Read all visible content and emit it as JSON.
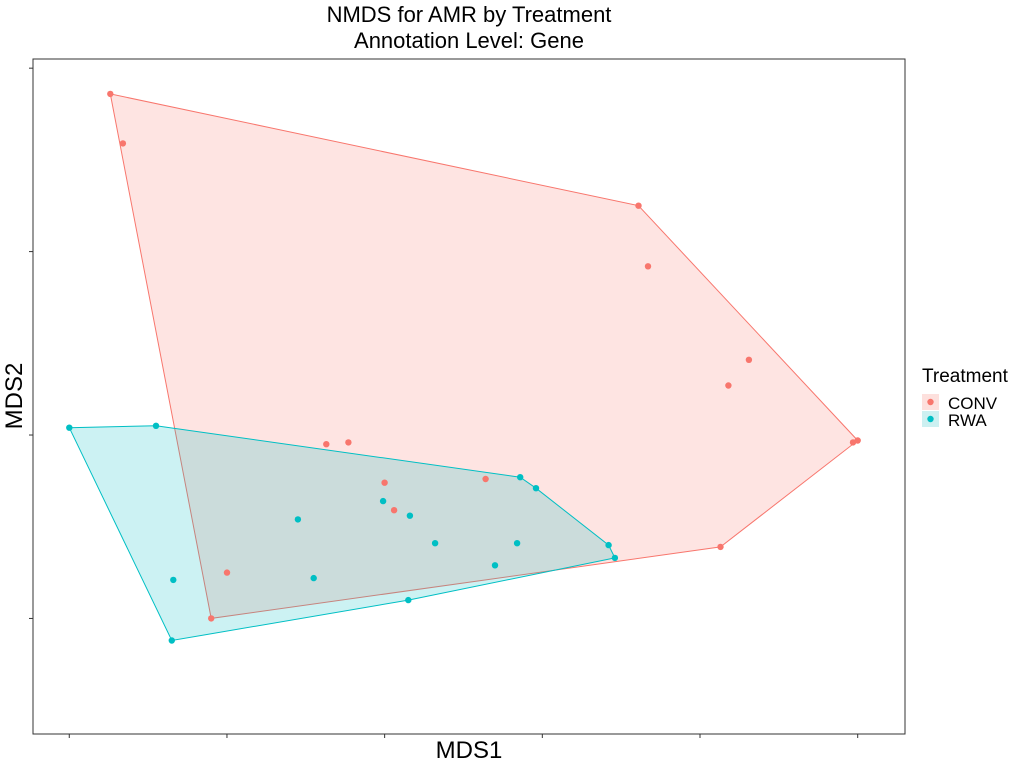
{
  "chart_data": {
    "type": "scatter",
    "title": "NMDS for AMR by Treatment",
    "subtitle": "Annotation Level: Gene",
    "xlabel": "MDS1",
    "ylabel": "MDS2",
    "xlim": [
      -2.23,
      3.3
    ],
    "ylim": [
      -1.63,
      2.05
    ],
    "x_ticks": [
      -2,
      -1,
      0,
      1,
      2,
      3
    ],
    "y_ticks": [
      -1,
      0,
      1,
      2
    ],
    "tick_labels_shown": false,
    "grid": false,
    "hulls": true,
    "legend": {
      "title": "Treatment",
      "position": "right"
    },
    "series": [
      {
        "name": "CONV",
        "color": "#F8766D",
        "fill": "#FDE0DD",
        "points": [
          [
            -1.74,
            1.86
          ],
          [
            -1.66,
            1.59
          ],
          [
            1.61,
            1.25
          ],
          [
            1.67,
            0.92
          ],
          [
            2.31,
            0.41
          ],
          [
            2.18,
            0.27
          ],
          [
            2.97,
            -0.04
          ],
          [
            3.0,
            -0.03
          ],
          [
            2.13,
            -0.61
          ],
          [
            -0.37,
            -0.05
          ],
          [
            -0.23,
            -0.04
          ],
          [
            0.0,
            -0.26
          ],
          [
            0.06,
            -0.41
          ],
          [
            0.64,
            -0.24
          ],
          [
            -1.0,
            -0.75
          ],
          [
            -1.1,
            -1.0
          ]
        ]
      },
      {
        "name": "RWA",
        "color": "#00BFC4",
        "fill": "#CCF0F1",
        "points": [
          [
            -2.0,
            0.04
          ],
          [
            -1.45,
            0.05
          ],
          [
            -1.34,
            -0.79
          ],
          [
            -1.35,
            -1.12
          ],
          [
            0.86,
            -0.23
          ],
          [
            0.96,
            -0.29
          ],
          [
            -0.55,
            -0.46
          ],
          [
            -0.45,
            -0.78
          ],
          [
            -0.01,
            -0.36
          ],
          [
            0.16,
            -0.44
          ],
          [
            0.32,
            -0.59
          ],
          [
            0.15,
            -0.9
          ],
          [
            0.7,
            -0.71
          ],
          [
            0.84,
            -0.59
          ],
          [
            1.42,
            -0.6
          ],
          [
            1.46,
            -0.67
          ]
        ]
      }
    ]
  }
}
